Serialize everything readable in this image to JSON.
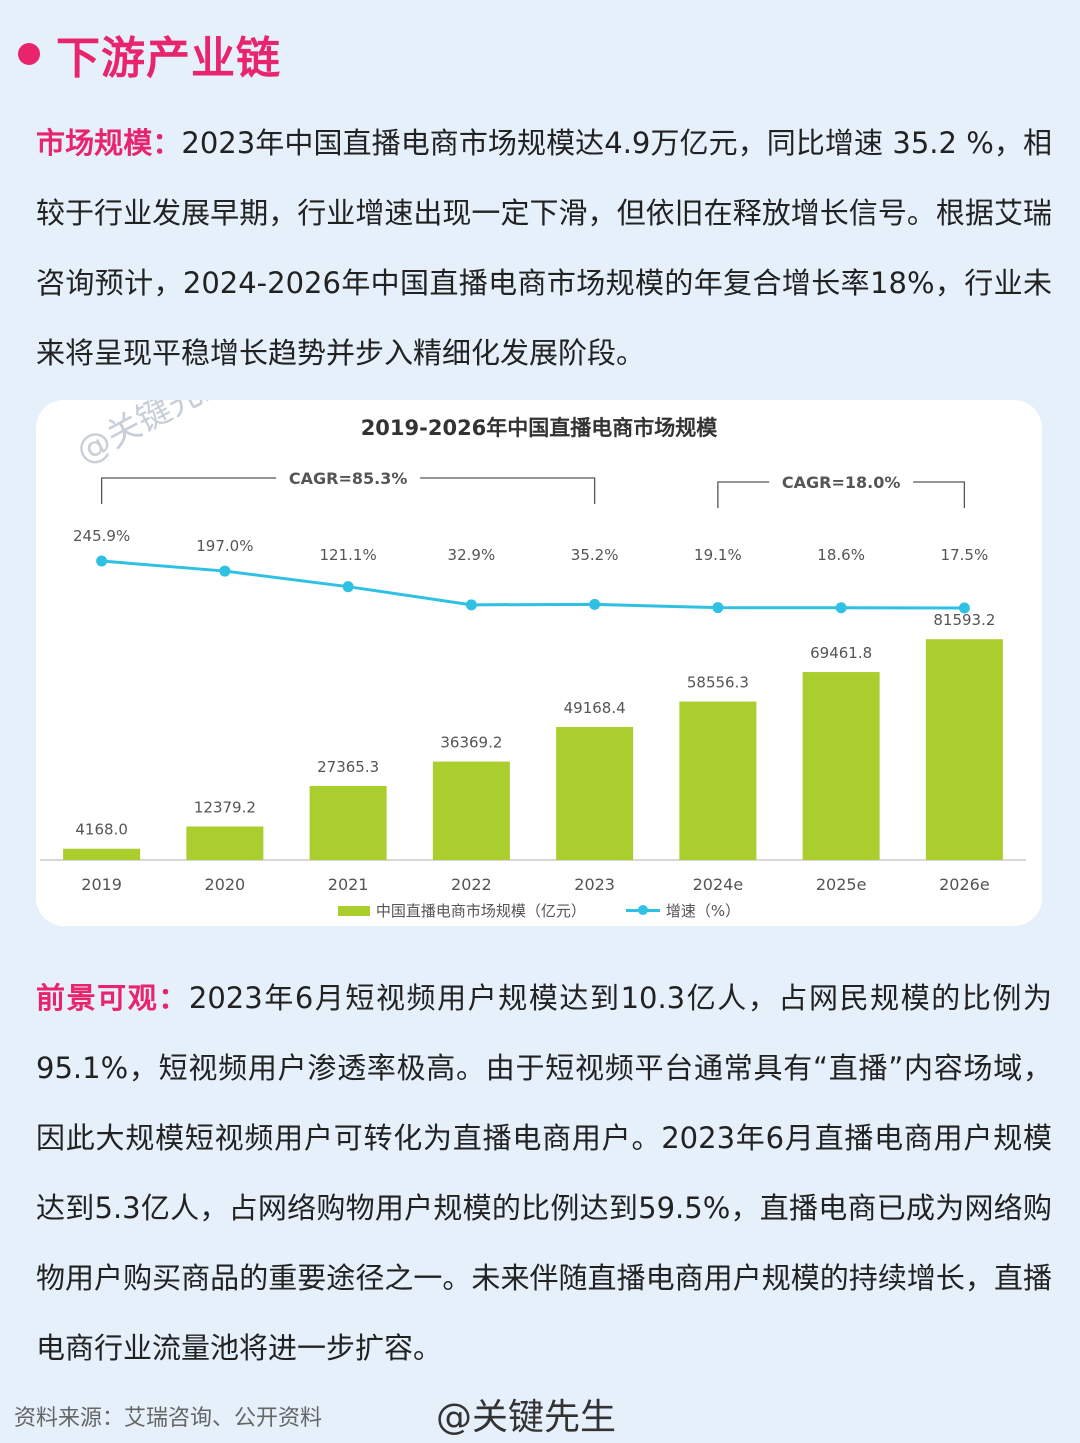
{
  "section_title": "下游产业链",
  "para1": {
    "lead": "市场规模：",
    "text": "2023年中国直播电商市场规模达4.9万亿元，同比增速 35.2 %，相较于行业发展早期，行业增速出现一定下滑，但依旧在释放增长信号。根据艾瑞咨询预计，2024-2026年中国直播电商市场规模的年复合增长率18%，行业未来将呈现平稳增长趋势并步入精细化发展阶段。"
  },
  "watermark_chart": "@关键先生",
  "chart_data": {
    "type": "bar",
    "title": "2019-2026年中国直播电商市场规模",
    "categories": [
      "2019",
      "2020",
      "2021",
      "2022",
      "2023",
      "2024e",
      "2025e",
      "2026e"
    ],
    "series": [
      {
        "name": "中国直播电商市场规模（亿元）",
        "type": "bar",
        "values": [
          4168.0,
          12379.2,
          27365.3,
          36369.2,
          49168.4,
          58556.3,
          69461.8,
          81593.2
        ],
        "labels": [
          "4168.0",
          "12379.2",
          "27365.3",
          "36369.2",
          "49168.4",
          "58556.3",
          "69461.8",
          "81593.2"
        ],
        "color": "#a9ce2d"
      },
      {
        "name": "增速（%）",
        "type": "line",
        "values": [
          245.9,
          197.0,
          121.1,
          32.9,
          35.2,
          19.1,
          18.6,
          17.5
        ],
        "labels": [
          "245.9%",
          "197.0%",
          "121.1%",
          "32.9%",
          "35.2%",
          "19.1%",
          "18.6%",
          "17.5%"
        ],
        "color": "#2fc1e3"
      }
    ],
    "annotations": [
      {
        "text": "CAGR=85.3%",
        "from": "2019",
        "to": "2023"
      },
      {
        "text": "CAGR=18.0%",
        "from": "2024e",
        "to": "2026e"
      }
    ],
    "ylim": [
      0,
      85000
    ]
  },
  "para2": {
    "lead": "前景可观：",
    "text": "2023年6月短视频用户规模达到10.3亿人，占网民规模的比例为95.1%，短视频用户渗透率极高。由于短视频平台通常具有“直播”内容场域，因此大规模短视频用户可转化为直播电商用户。2023年6月直播电商用户规模达到5.3亿人，占网络购物用户规模的比例达到59.5%，直播电商已成为网络购物用户购买商品的重要途径之一。未来伴随直播电商用户规模的持续增长，直播电商行业流量池将进一步扩容。"
  },
  "footer": {
    "source": "资料来源：艾瑞咨询、公开资料",
    "mark": "@关键先生"
  }
}
